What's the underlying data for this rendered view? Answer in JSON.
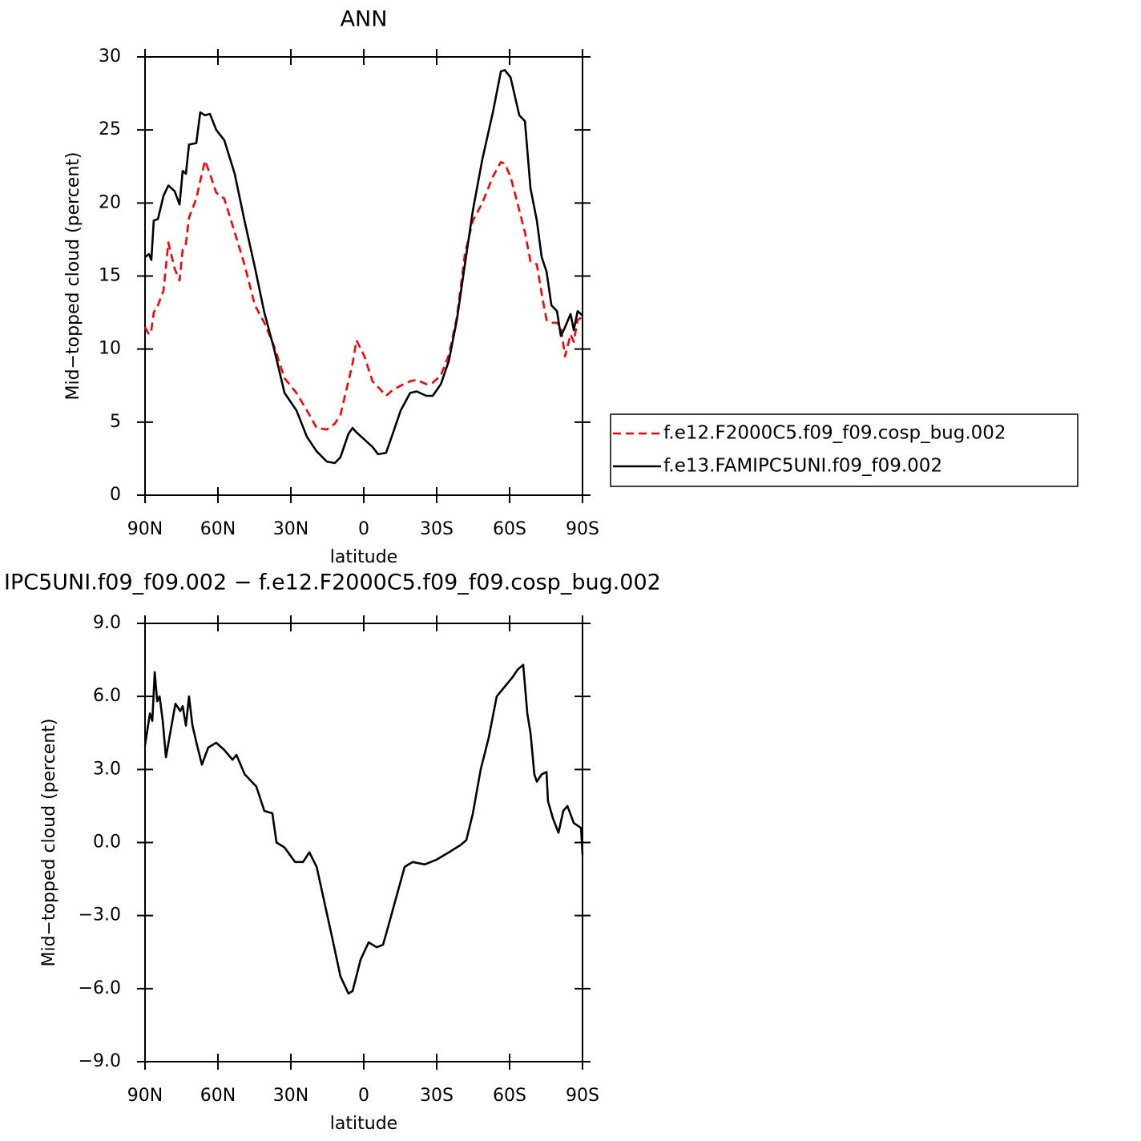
{
  "chart_data": [
    {
      "type": "line",
      "title": "ANN",
      "xlabel": "latitude",
      "ylabel": "Mid−topped cloud (percent)",
      "x": [
        90,
        88.4,
        87.4,
        86.4,
        84.7,
        82.4,
        80.4,
        77.8,
        75.8,
        74.5,
        73.2,
        71.9,
        68.9,
        67.3,
        65.3,
        63.3,
        60.7,
        57.4,
        53.1,
        49.1,
        44.8,
        40.9,
        36.9,
        32.6,
        27.7,
        23.4,
        19.4,
        15.2,
        11.9,
        9.6,
        6.3,
        4.6,
        3,
        -0.3,
        -3.6,
        -5.9,
        -9.2,
        -11.9,
        -15.2,
        -19.1,
        -21.8,
        -25.7,
        -28.4,
        -31.7,
        -35,
        -38.3,
        -41.6,
        -44.9,
        -48.8,
        -53.1,
        -56.4,
        -58,
        -60.4,
        -64,
        -66.3,
        -68.6,
        -71.2,
        -73.2,
        -75.2,
        -77.2,
        -79.5,
        -81.1,
        -82.8,
        -85.1,
        -86.4,
        -88,
        -90
      ],
      "series": [
        {
          "name": "f.e12.F2000C5.f09_f09.cosp_bug.002",
          "color": "#ff0000",
          "dashed": true,
          "values": [
            11.5,
            11.0,
            11.3,
            12.5,
            13.0,
            14.0,
            17.3,
            15.5,
            14.7,
            16.8,
            17.2,
            19.0,
            20.3,
            21.5,
            22.9,
            22.0,
            20.7,
            20.3,
            18.0,
            15.8,
            13.0,
            11.8,
            10.2,
            8.0,
            7.0,
            5.8,
            4.6,
            4.5,
            4.9,
            5.5,
            7.8,
            9.0,
            10.6,
            9.5,
            7.8,
            7.4,
            6.8,
            7.2,
            7.5,
            7.8,
            7.9,
            7.6,
            7.7,
            8.2,
            9.6,
            12.2,
            16.5,
            18.8,
            20.0,
            21.8,
            22.8,
            22.7,
            21.8,
            19.5,
            18.0,
            16.0,
            15.8,
            13.8,
            12.0,
            11.8,
            11.8,
            11.5,
            9.5,
            11.0,
            10.5,
            12.0,
            12.2
          ]
        },
        {
          "name": "f.e13.FAMIPC5UNI.f09_f09.002",
          "color": "#000000",
          "dashed": false,
          "values": [
            16.3,
            16.5,
            16.1,
            18.8,
            18.9,
            20.5,
            21.2,
            20.8,
            19.9,
            22.2,
            22.0,
            24.0,
            24.1,
            26.2,
            26.0,
            26.1,
            25.0,
            24.3,
            22.0,
            18.8,
            15.6,
            12.5,
            10.0,
            7.0,
            5.8,
            4.0,
            3.0,
            2.3,
            2.2,
            2.6,
            4.2,
            4.6,
            4.3,
            3.8,
            3.3,
            2.8,
            2.9,
            4.2,
            5.8,
            7.0,
            7.1,
            6.8,
            6.8,
            7.6,
            9.2,
            12.0,
            15.8,
            19.5,
            23.0,
            26.2,
            29.0,
            29.1,
            28.6,
            26.0,
            25.6,
            21.0,
            18.8,
            16.3,
            15.3,
            13.0,
            12.6,
            10.9,
            11.5,
            12.4,
            11.3,
            12.6,
            12.3
          ]
        }
      ],
      "xlim": [
        90,
        -90
      ],
      "xticks": [
        {
          "value": 90,
          "label": "90N"
        },
        {
          "value": 60,
          "label": "60N"
        },
        {
          "value": 30,
          "label": "30N"
        },
        0,
        {
          "value": -30,
          "label": "30S"
        },
        {
          "value": -60,
          "label": "60S"
        },
        {
          "value": -90,
          "label": "90S"
        }
      ],
      "ylim": [
        0,
        30
      ],
      "yticks": [
        0,
        5,
        10,
        15,
        20,
        25,
        30
      ],
      "legend": "right"
    },
    {
      "type": "line",
      "title": "IPC5UNI.f09_f09.002 − f.e12.F2000C5.f09_f09.cosp_bug.002",
      "xlabel": "latitude",
      "ylabel": "Mid−topped cloud (percent)",
      "x": [
        90,
        88,
        87,
        86,
        85,
        84,
        82.7,
        81.4,
        79.8,
        77.5,
        75.5,
        74.5,
        73.2,
        71.9,
        70.5,
        68.6,
        66.6,
        64,
        60.7,
        57.4,
        54,
        52.4,
        49,
        44.2,
        40.9,
        37.6,
        35.9,
        32.6,
        28.3,
        25,
        22.4,
        19.4,
        16.1,
        12.8,
        9.6,
        6.3,
        4.6,
        1.3,
        -2,
        -5.3,
        -7.9,
        -10.2,
        -13.5,
        -16.8,
        -20.1,
        -25.1,
        -30,
        -35,
        -39.9,
        -42.2,
        -44.9,
        -48.1,
        -51.4,
        -54.7,
        -58,
        -61.3,
        -63.3,
        -65.6,
        -67.3,
        -68.6,
        -70.2,
        -71.2,
        -73.2,
        -75.2,
        -75.8,
        -77.8,
        -80.1,
        -82.1,
        -83.8,
        -86.4,
        -89.4,
        -90
      ],
      "series": [
        {
          "color": "#000000",
          "dashed": false,
          "values": [
            4.0,
            5.3,
            5.0,
            7.0,
            5.8,
            6.0,
            5.0,
            3.5,
            4.4,
            5.7,
            5.4,
            5.6,
            4.8,
            6.0,
            4.8,
            4.0,
            3.2,
            3.9,
            4.1,
            3.8,
            3.4,
            3.6,
            2.8,
            2.3,
            1.3,
            1.2,
            0.0,
            -0.2,
            -0.8,
            -0.8,
            -0.4,
            -1.0,
            -2.5,
            -4.0,
            -5.5,
            -6.2,
            -6.1,
            -4.8,
            -4.1,
            -4.3,
            -4.2,
            -3.4,
            -2.2,
            -1.0,
            -0.8,
            -0.9,
            -0.7,
            -0.4,
            -0.1,
            0.1,
            1.2,
            3.0,
            4.3,
            6.0,
            6.4,
            6.8,
            7.1,
            7.3,
            5.3,
            4.5,
            2.8,
            2.5,
            2.8,
            2.9,
            1.7,
            1.0,
            0.4,
            1.3,
            1.5,
            0.8,
            0.6,
            -0.5
          ]
        }
      ],
      "xlim": [
        90,
        -90
      ],
      "xticks": [
        {
          "value": 90,
          "label": "90N"
        },
        {
          "value": 60,
          "label": "60N"
        },
        {
          "value": 30,
          "label": "30N"
        },
        0,
        {
          "value": -30,
          "label": "30S"
        },
        {
          "value": -60,
          "label": "60S"
        },
        {
          "value": -90,
          "label": "90S"
        }
      ],
      "ylim": [
        -9,
        9
      ],
      "yticks": [
        {
          "value": -9,
          "label": "−9.0"
        },
        {
          "value": -6,
          "label": "−6.0"
        },
        {
          "value": -3,
          "label": "−3.0"
        },
        {
          "value": 0,
          "label": "0.0"
        },
        {
          "value": 3,
          "label": "3.0"
        },
        {
          "value": 6,
          "label": "6.0"
        },
        {
          "value": 9,
          "label": "9.0"
        }
      ]
    }
  ]
}
